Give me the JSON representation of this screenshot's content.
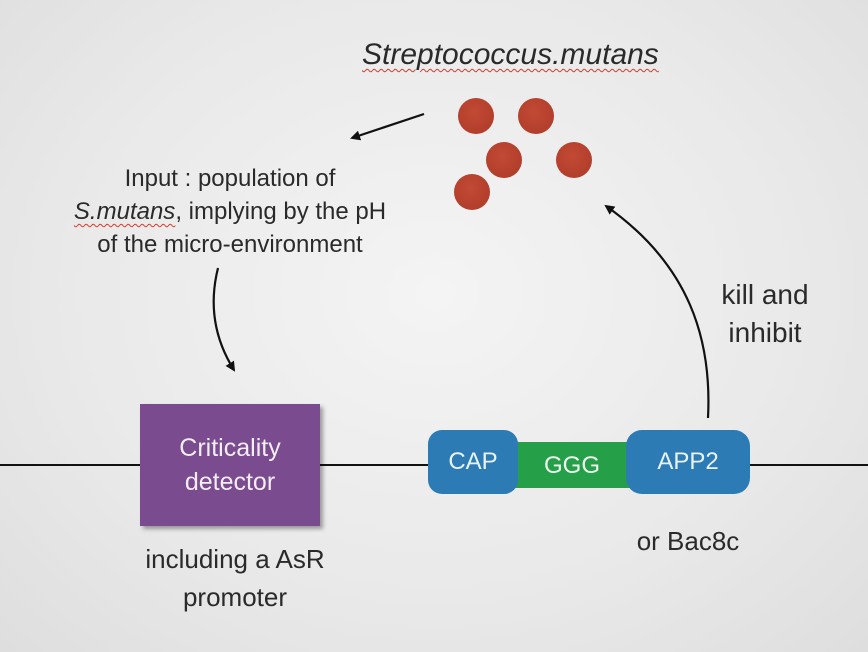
{
  "title": "Streptococcus.mutans",
  "input_note": {
    "line1": "Input : population of",
    "line2_species": "S.mutans",
    "line2_rest": ", implying by the pH",
    "line3": "of the micro-environment"
  },
  "kill_note": {
    "line1": "kill and",
    "line2": "inhibit"
  },
  "detector": {
    "line1": "Criticality",
    "line2": "detector"
  },
  "detector_note": {
    "line1": "including a AsR",
    "line2": "promoter"
  },
  "construct": {
    "cap": "CAP",
    "linker": "GGG",
    "app": "APP2"
  },
  "alt_note": "or Bac8c",
  "colors": {
    "bacteria": "#b23e2b",
    "detector": "#7a4b8f",
    "domain_blue": "#2c7bb5",
    "linker_green": "#25a048",
    "spellcheck_underline": "#d43a2a"
  }
}
